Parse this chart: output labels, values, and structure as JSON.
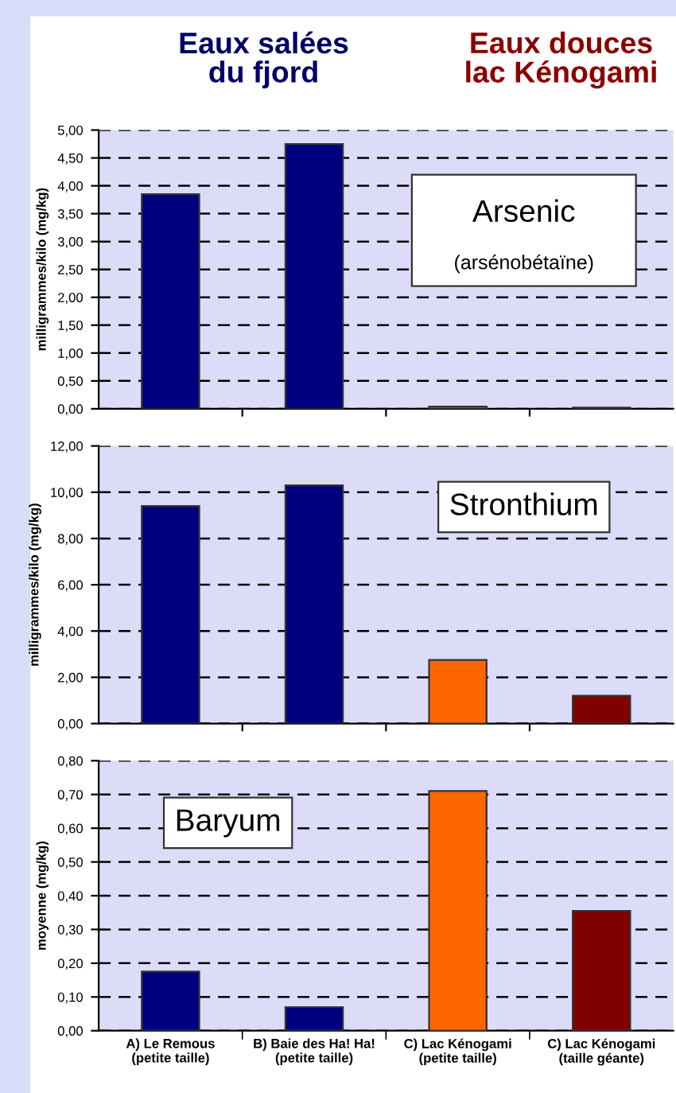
{
  "chart_data": [
    {
      "type": "bar",
      "categories": [
        null,
        null,
        null,
        null
      ],
      "values": [
        3.85,
        4.75,
        0.04,
        0.02
      ],
      "colors": [
        "#000080",
        "#000080",
        "#ff6600",
        "#800000"
      ],
      "ylabel": "milligrammes/kilo (mg/kg)",
      "ylim": [
        0,
        5
      ],
      "yticks": [
        {
          "value": 0,
          "label": "0,00"
        },
        {
          "value": 0.5,
          "label": "0,50"
        },
        {
          "value": 1,
          "label": "1,00"
        },
        {
          "value": 1.5,
          "label": "1,50"
        },
        {
          "value": 2,
          "label": "2,00"
        },
        {
          "value": 2.5,
          "label": "2,50"
        },
        {
          "value": 3,
          "label": "3,00"
        },
        {
          "value": 3.5,
          "label": "3,50"
        },
        {
          "value": 4,
          "label": "4,00"
        },
        {
          "value": 4.5,
          "label": "4,50"
        },
        {
          "value": 5,
          "label": "5,00"
        }
      ],
      "grid": "y",
      "tick_labels": "y",
      "annotations": [
        "Eaux salées\ndu fjord",
        "Eaux douces\nlac Kénogami",
        "Arsenic",
        "(arsénobétaïne)"
      ]
    },
    {
      "type": "bar",
      "categories": [
        null,
        null,
        null,
        null
      ],
      "values": [
        9.4,
        10.3,
        2.75,
        1.2
      ],
      "colors": [
        "#000080",
        "#000080",
        "#ff6600",
        "#800000"
      ],
      "ylabel": "milligrammes/kilo (mg/kg)",
      "ylim": [
        0,
        12
      ],
      "yticks": [
        {
          "value": 0,
          "label": "0,00"
        },
        {
          "value": 2,
          "label": "2,00"
        },
        {
          "value": 4,
          "label": "4,00"
        },
        {
          "value": 6,
          "label": "6,00"
        },
        {
          "value": 8,
          "label": "8,00"
        },
        {
          "value": 10,
          "label": "10,00"
        },
        {
          "value": 12,
          "label": "12,00"
        }
      ],
      "grid": "y",
      "tick_labels": "y",
      "annotations": [
        "Stronthium"
      ]
    },
    {
      "type": "bar",
      "categories": [
        "A) Le Remous\n(petite taille)",
        "B) Baie des Ha! Ha!\n(petite taille)",
        "C) Lac Kénogami\n(petite taille)",
        "C) Lac Kénogami\n(taille géante)"
      ],
      "values": [
        0.175,
        0.07,
        0.71,
        0.355
      ],
      "colors": [
        "#000080",
        "#000080",
        "#ff6600",
        "#800000"
      ],
      "ylabel": "moyenne (mg/kg)",
      "ylim": [
        0,
        0.8
      ],
      "yticks": [
        {
          "value": 0,
          "label": "0,00"
        },
        {
          "value": 0.1,
          "label": "0,10"
        },
        {
          "value": 0.2,
          "label": "0,20"
        },
        {
          "value": 0.3,
          "label": "0,30"
        },
        {
          "value": 0.4,
          "label": "0,40"
        },
        {
          "value": 0.5,
          "label": "0,50"
        },
        {
          "value": 0.6,
          "label": "0,60"
        },
        {
          "value": 0.7,
          "label": "0,70"
        },
        {
          "value": 0.8,
          "label": "0,80"
        }
      ],
      "grid": "y",
      "annotations": [
        "Baryum"
      ]
    }
  ]
}
